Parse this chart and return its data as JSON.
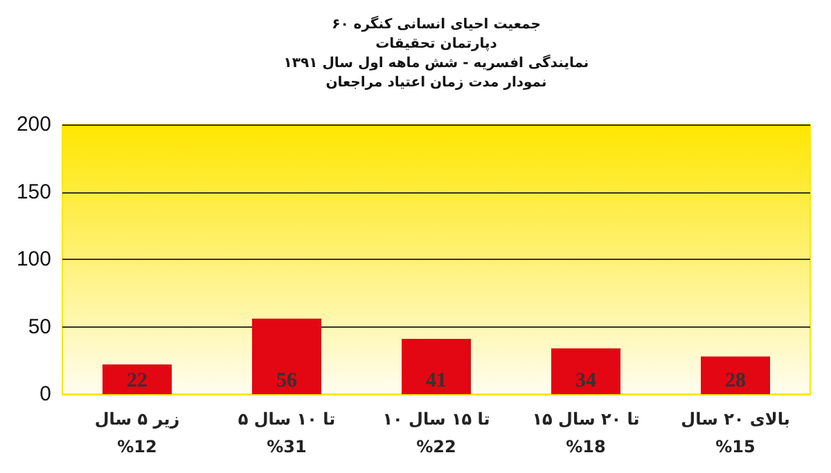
{
  "chart_data": {
    "type": "bar",
    "title": "جمعیت احیای انسانی کنگره ۶۰\nدپارتمان تحقیقات\nنمایندگی افسریه - شش ماهه اول سال ۱۳۹۱\nنمودار مدت زمان اعتیاد مراجعان",
    "categories": [
      "زیر ۵ سال\n%12",
      "۵ تا ۱۰ سال\n%31",
      "۱۰ تا ۱۵ سال\n%22",
      "۱۵ تا ۲۰ سال\n%18",
      "بالای ۲۰ سال\n%15"
    ],
    "values": [
      22,
      56,
      41,
      34,
      28
    ],
    "color": "#e30613",
    "ylim": [
      0,
      200
    ],
    "yticks": [
      0,
      50,
      100,
      150,
      200
    ],
    "grid": "y",
    "data_labels": true
  }
}
